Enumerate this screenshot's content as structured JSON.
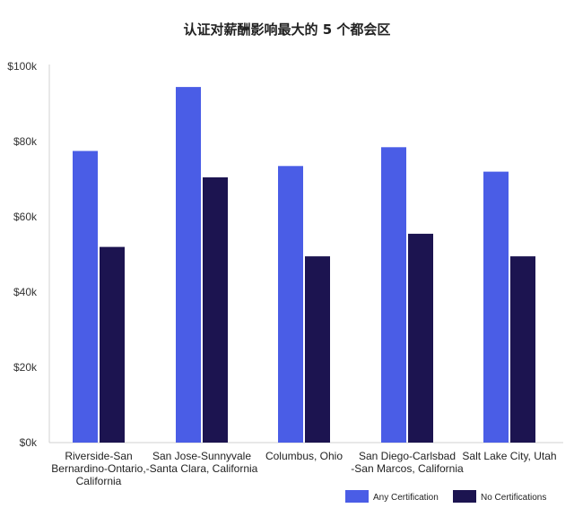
{
  "chart_data": {
    "type": "bar",
    "title": "认证对薪酬影响最大的 5 个都会区",
    "xlabel": "",
    "ylabel": "",
    "ylim": [
      0,
      100000
    ],
    "yticks": [
      "$0k",
      "$20k",
      "$40k",
      "$60k",
      "$80k",
      "$100k"
    ],
    "categories": [
      [
        "Riverside-San",
        "Bernardino-Ontario,",
        "California"
      ],
      [
        "San Jose-Sunnyvale",
        "-Santa Clara, California"
      ],
      [
        "Columbus, Ohio"
      ],
      [
        "San Diego-Carlsbad",
        "-San Marcos, California"
      ],
      [
        "Salt Lake City, Utah"
      ]
    ],
    "series": [
      {
        "name": "Any Certification",
        "color": "#4a5de6",
        "values": [
          77500,
          94500,
          73500,
          78500,
          72000
        ]
      },
      {
        "name": "No Certifications",
        "color": "#1c1450",
        "values": [
          52000,
          70500,
          49500,
          55500,
          49500
        ]
      }
    ],
    "grid": false,
    "legend_position": "bottom-right"
  }
}
